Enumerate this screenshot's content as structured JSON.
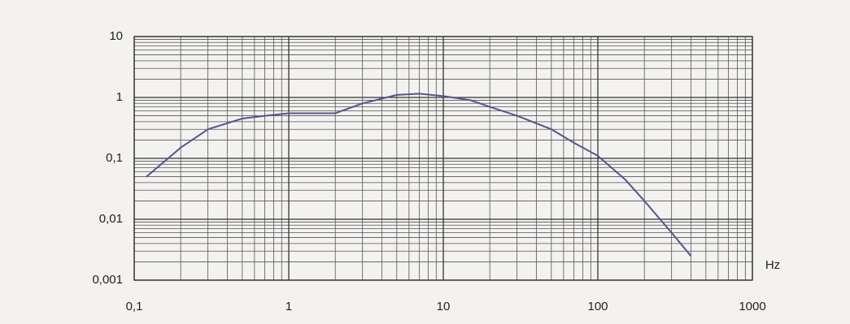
{
  "chart_data": {
    "type": "line",
    "x": [
      0.12,
      0.2,
      0.3,
      0.5,
      0.7,
      1,
      2,
      3,
      5,
      7,
      10,
      15,
      20,
      30,
      50,
      70,
      100,
      150,
      200,
      300,
      400
    ],
    "values": [
      0.05,
      0.15,
      0.3,
      0.45,
      0.5,
      0.55,
      0.55,
      0.8,
      1.1,
      1.15,
      1.05,
      0.9,
      0.7,
      0.5,
      0.3,
      0.18,
      0.11,
      0.045,
      0.02,
      0.006,
      0.0025
    ],
    "color": "#55558f",
    "x_label": "Hz",
    "xscale": "log",
    "yscale": "log",
    "xlim": [
      0.1,
      1000
    ],
    "ylim": [
      0.001,
      10
    ],
    "xticks": [
      {
        "value": 0.1,
        "label": "0,1"
      },
      1,
      10,
      100,
      1000
    ],
    "yticks": [
      {
        "value": 0.001,
        "label": "0,001"
      },
      {
        "value": 0.01,
        "label": "0,01"
      },
      {
        "value": 0.1,
        "label": "0,1"
      },
      1,
      10
    ],
    "grid": true,
    "minor_grid": true
  }
}
